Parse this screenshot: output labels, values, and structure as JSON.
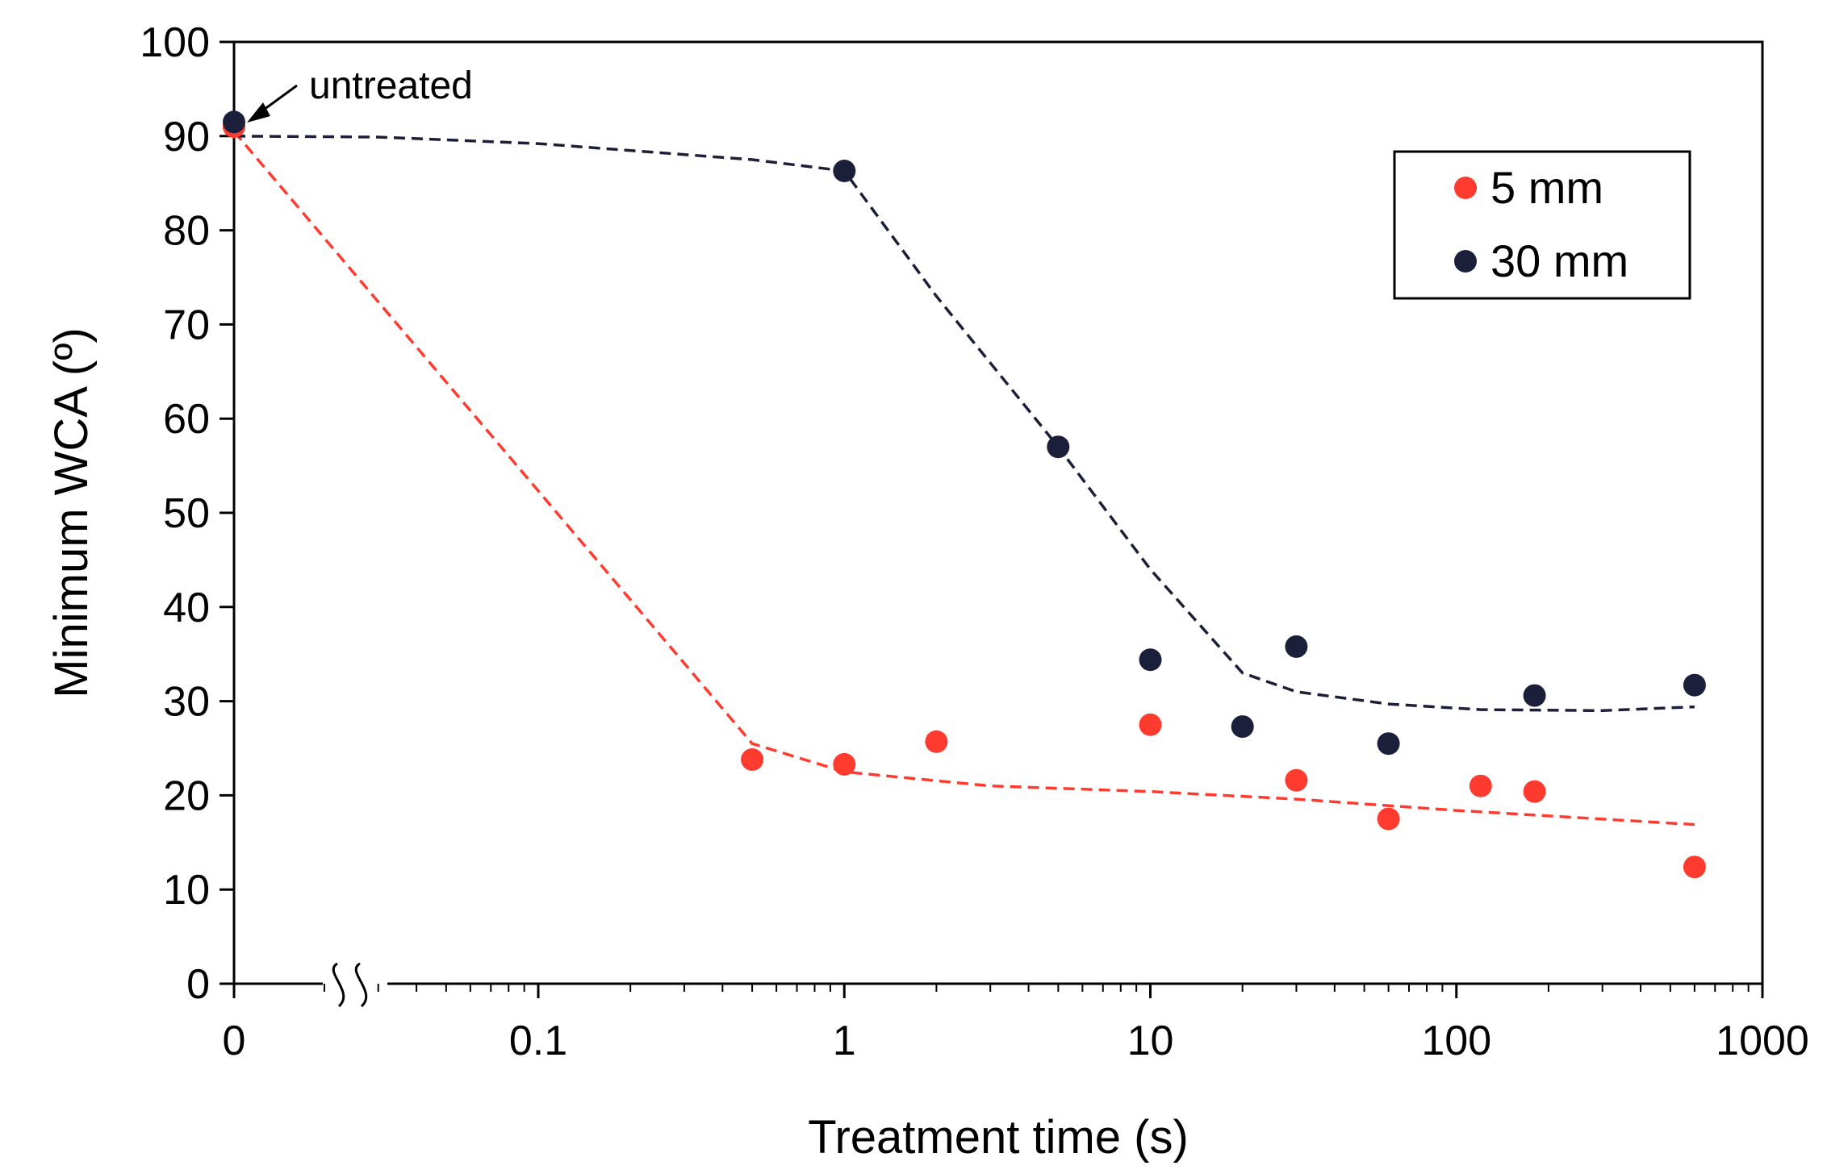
{
  "chart_data": {
    "type": "scatter",
    "title": "",
    "xlabel": "Treatment time (s)",
    "ylabel": "Minimum WCA (º)",
    "xscale": "log",
    "x_axis_break": true,
    "xlim": [
      0.01,
      1000
    ],
    "ylim": [
      0,
      100
    ],
    "x_tick_values": [
      0,
      0.1,
      1,
      10,
      100,
      1000
    ],
    "x_tick_labels": [
      "0",
      "0.1",
      "1",
      "10",
      "100",
      "1000"
    ],
    "y_ticks": [
      0,
      10,
      20,
      30,
      40,
      50,
      60,
      70,
      80,
      90,
      100
    ],
    "y_tick_labels": [
      "0",
      "10",
      "20",
      "30",
      "40",
      "50",
      "60",
      "70",
      "80",
      "90",
      "100"
    ],
    "grid": false,
    "legend_position": "top-right",
    "annotation": {
      "text": "untreated",
      "x": 0,
      "y": 91.5
    },
    "series": [
      {
        "name": "5 mm",
        "color": "#ff3b30",
        "points": [
          {
            "x": 0,
            "y": 91
          },
          {
            "x": 0.5,
            "y": 23.8
          },
          {
            "x": 1,
            "y": 23.3
          },
          {
            "x": 2,
            "y": 25.7
          },
          {
            "x": 10,
            "y": 27.5
          },
          {
            "x": 30,
            "y": 21.6
          },
          {
            "x": 60,
            "y": 17.5
          },
          {
            "x": 120,
            "y": 21
          },
          {
            "x": 180,
            "y": 20.4
          },
          {
            "x": 600,
            "y": 12.4
          }
        ],
        "trend": [
          {
            "x": 0,
            "y": 90.5
          },
          {
            "x": 0.5,
            "y": 25.5
          },
          {
            "x": 1,
            "y": 22.5
          },
          {
            "x": 3,
            "y": 21
          },
          {
            "x": 10,
            "y": 20.4
          },
          {
            "x": 30,
            "y": 19.6
          },
          {
            "x": 100,
            "y": 18.4
          },
          {
            "x": 600,
            "y": 16.9
          }
        ]
      },
      {
        "name": "30 mm",
        "color": "#1c1f3a",
        "points": [
          {
            "x": 0,
            "y": 91.5
          },
          {
            "x": 1,
            "y": 86.3
          },
          {
            "x": 5,
            "y": 57
          },
          {
            "x": 10,
            "y": 34.4
          },
          {
            "x": 20,
            "y": 27.3
          },
          {
            "x": 30,
            "y": 35.8
          },
          {
            "x": 60,
            "y": 25.5
          },
          {
            "x": 180,
            "y": 30.6
          },
          {
            "x": 600,
            "y": 31.7
          }
        ],
        "trend": [
          {
            "x": 0,
            "y": 90
          },
          {
            "x": 0.03,
            "y": 89.9
          },
          {
            "x": 0.1,
            "y": 89.2
          },
          {
            "x": 0.5,
            "y": 87.5
          },
          {
            "x": 1,
            "y": 86.3
          },
          {
            "x": 2,
            "y": 73
          },
          {
            "x": 5,
            "y": 57
          },
          {
            "x": 10,
            "y": 44
          },
          {
            "x": 20,
            "y": 33
          },
          {
            "x": 30,
            "y": 31
          },
          {
            "x": 60,
            "y": 29.7
          },
          {
            "x": 120,
            "y": 29.1
          },
          {
            "x": 300,
            "y": 29
          },
          {
            "x": 600,
            "y": 29.4
          }
        ]
      }
    ]
  }
}
